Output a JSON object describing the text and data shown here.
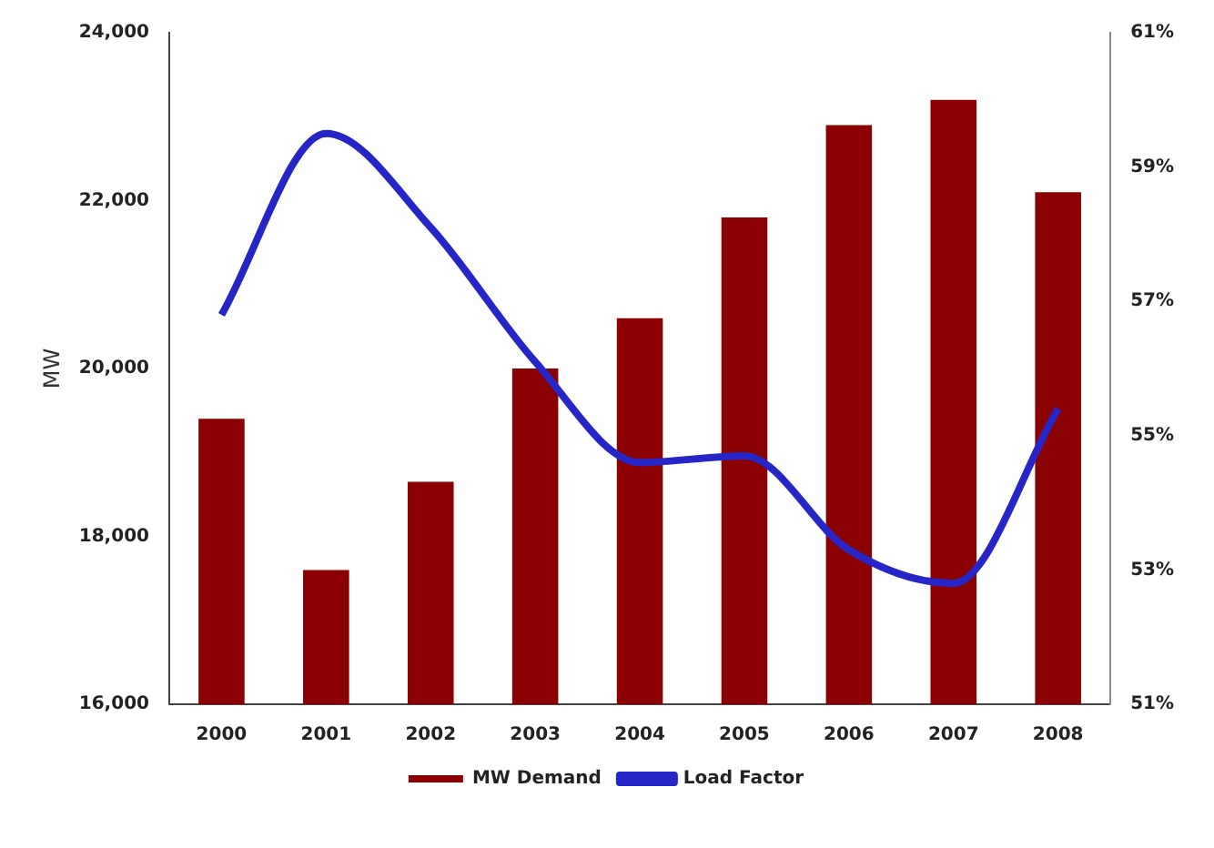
{
  "chart_data": {
    "type": "bar",
    "categories": [
      "2000",
      "2001",
      "2002",
      "2003",
      "2004",
      "2005",
      "2006",
      "2007",
      "2008"
    ],
    "series": [
      {
        "name": "MW Demand",
        "color": "#8b0000",
        "values": [
          19400,
          17600,
          18650,
          20000,
          20600,
          21800,
          22900,
          23200,
          22100
        ]
      },
      {
        "name": "Load Factor",
        "type": "line",
        "axis": "y2",
        "color": "#2626c8",
        "values": [
          56.8,
          59.5,
          58.1,
          56.1,
          54.6,
          54.7,
          53.3,
          52.8,
          55.4
        ]
      }
    ],
    "ylabel": "MW",
    "ylim": [
      16000,
      24000
    ],
    "yticks": [
      {
        "value": 16000,
        "label": "16,000"
      },
      {
        "value": 18000,
        "label": "18,000"
      },
      {
        "value": 20000,
        "label": "20,000"
      },
      {
        "value": 22000,
        "label": "22,000"
      },
      {
        "value": 24000,
        "label": "24,000"
      }
    ],
    "y2lim": [
      51,
      61
    ],
    "y2ticks": [
      {
        "value": 51,
        "label": "51%"
      },
      {
        "value": 53,
        "label": "53%"
      },
      {
        "value": 55,
        "label": "55%"
      },
      {
        "value": 57,
        "label": "57%"
      },
      {
        "value": 59,
        "label": "59%"
      },
      {
        "value": 61,
        "label": "61%"
      }
    ],
    "legend": "bottom",
    "grid": false,
    "marker": "none"
  }
}
